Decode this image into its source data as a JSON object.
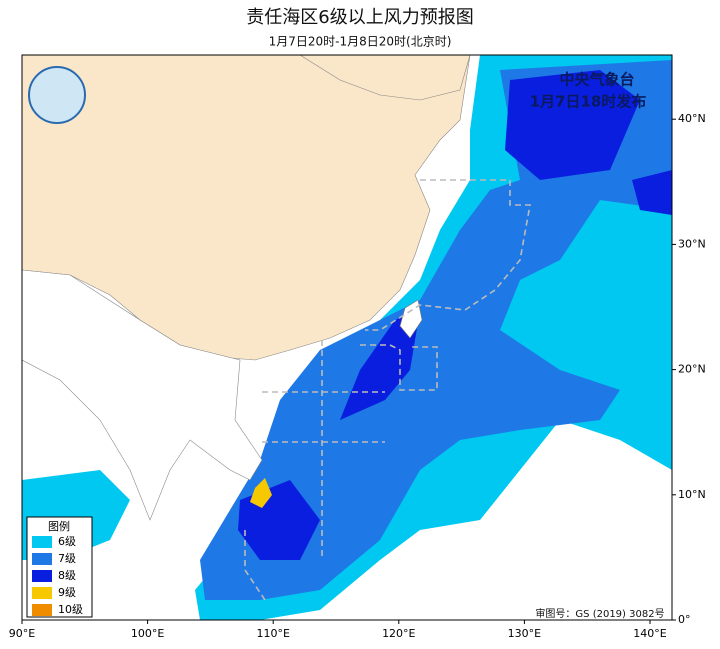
{
  "header": {
    "title": "责任海区6级以上风力预报图",
    "subtitle": "1月7日20时-1月8日20时(北京时)"
  },
  "issuer": {
    "agency": "中央气象台",
    "issued": "1月7日18时发布"
  },
  "axes": {
    "x_ticks": [
      {
        "value": 90,
        "label": "90°E"
      },
      {
        "value": 100,
        "label": "100°E"
      },
      {
        "value": 110,
        "label": "110°E"
      },
      {
        "value": 120,
        "label": "120°E"
      },
      {
        "value": 130,
        "label": "130°E"
      },
      {
        "value": 140,
        "label": "140°E"
      }
    ],
    "y_ticks": [
      {
        "value": 0,
        "label": "0°"
      },
      {
        "value": 10,
        "label": "10°N"
      },
      {
        "value": 20,
        "label": "20°N"
      },
      {
        "value": 30,
        "label": "30°N"
      },
      {
        "value": 40,
        "label": "40°N"
      }
    ]
  },
  "legend": {
    "title": "图例",
    "items": [
      {
        "label": "6级",
        "color": "#00c8f0"
      },
      {
        "label": "7级",
        "color": "#1e78e6"
      },
      {
        "label": "8级",
        "color": "#0a1ee0"
      },
      {
        "label": "9级",
        "color": "#f5c800"
      },
      {
        "label": "10级",
        "color": "#f08c00"
      }
    ]
  },
  "footer": {
    "review_number": "审图号：GS (2019) 3082号"
  }
}
